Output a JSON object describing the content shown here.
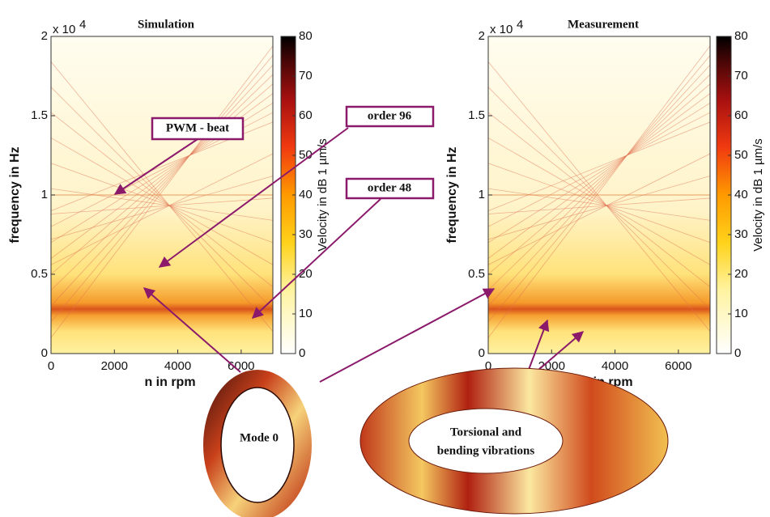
{
  "chart_data": [
    {
      "type": "heatmap",
      "title": "Simulation",
      "xlabel": "n in rpm",
      "ylabel": "frequency in Hz",
      "y_multiplier": "x 10",
      "y_multiplier_power": "4",
      "xlim": [
        0,
        7000
      ],
      "ylim": [
        0,
        20000
      ],
      "xticks": [
        0,
        2000,
        4000,
        6000
      ],
      "yticks": [
        {
          "value": 0,
          "label": "0"
        },
        {
          "value": 5000,
          "label": "0.5"
        },
        {
          "value": 10000,
          "label": "1"
        },
        {
          "value": 15000,
          "label": "1.5"
        },
        {
          "value": 20000,
          "label": "2"
        }
      ],
      "colorbar": {
        "label": "Velocity in dB 1 µm/s",
        "lim": [
          0,
          80
        ],
        "ticks": [
          0,
          10,
          20,
          30,
          40,
          50,
          60,
          70,
          80
        ]
      }
    },
    {
      "type": "heatmap",
      "title": "Measurement",
      "xlabel": "n in rpm",
      "ylabel": "frequency in Hz",
      "y_multiplier": "x 10",
      "y_multiplier_power": "4",
      "xlim": [
        0,
        7000
      ],
      "ylim": [
        0,
        20000
      ],
      "xticks": [
        0,
        2000,
        4000,
        6000
      ],
      "yticks": [
        {
          "value": 0,
          "label": "0"
        },
        {
          "value": 5000,
          "label": "0.5"
        },
        {
          "value": 10000,
          "label": "1"
        },
        {
          "value": 15000,
          "label": "1.5"
        },
        {
          "value": 20000,
          "label": "2"
        }
      ],
      "colorbar": {
        "label": "Velocity in dB 1 µm/s",
        "lim": [
          0,
          80
        ],
        "ticks": [
          0,
          10,
          20,
          30,
          40,
          50,
          60,
          70,
          80
        ]
      }
    }
  ],
  "annotations": [
    "PWM - beat",
    "order 96",
    "order 48"
  ],
  "figure_labels": {
    "mode": "Mode 0",
    "torsional": [
      "Torsional and",
      "bending vibrations"
    ]
  }
}
